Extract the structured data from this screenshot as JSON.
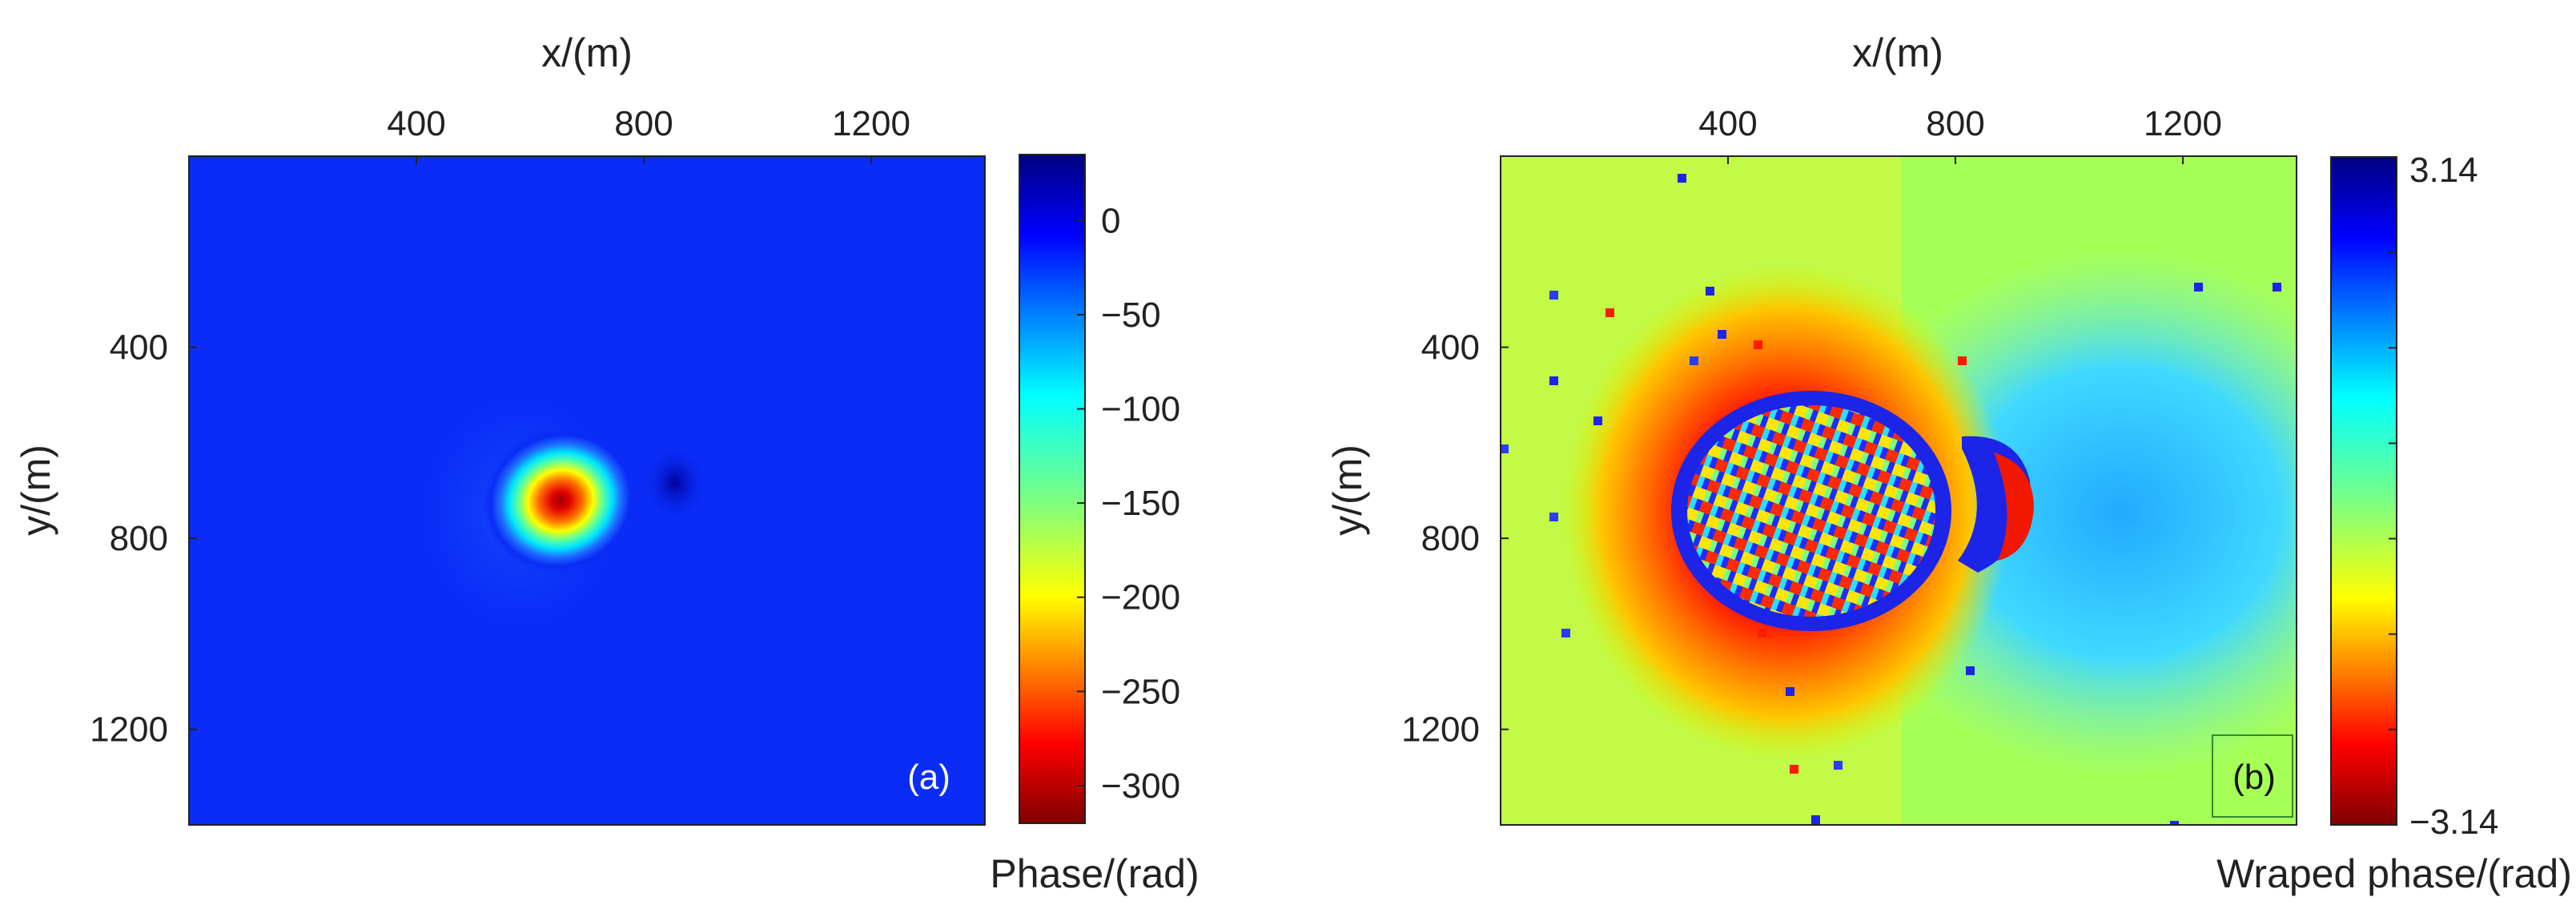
{
  "chart_data": [
    {
      "type": "heatmap",
      "panel_label": "(a)",
      "xlabel": "x/(m)",
      "ylabel": "y/(m)",
      "colorbar_label": "Phase/(rad)",
      "xlim": [
        0,
        1400
      ],
      "ylim": [
        0,
        1400
      ],
      "xticks": [
        "400",
        "800",
        "1200"
      ],
      "yticks": [
        "400",
        "800",
        "1200"
      ],
      "colorbar_range": [
        -320,
        35
      ],
      "colorbar_ticks": [
        "0",
        "−50",
        "−100",
        "−150",
        "−200",
        "−250",
        "−300"
      ],
      "features": {
        "background_value": 0,
        "peak": {
          "x": 680,
          "y": 730,
          "value": -315
        },
        "trough": {
          "x": 870,
          "y": 680,
          "value": 30
        }
      },
      "colormap": "jet_reversed"
    },
    {
      "type": "heatmap",
      "panel_label": "(b)",
      "xlabel": "x/(m)",
      "ylabel": "y/(m)",
      "colorbar_label": "Wraped phase/(rad)",
      "xlim": [
        0,
        1400
      ],
      "ylim": [
        0,
        1400
      ],
      "xticks": [
        "400",
        "800",
        "1200"
      ],
      "yticks": [
        "400",
        "800",
        "1200"
      ],
      "colorbar_range": [
        -3.14,
        3.14
      ],
      "colorbar_ticks": [
        "3.14",
        "−3.14"
      ],
      "colormap": "jet_reversed"
    }
  ]
}
